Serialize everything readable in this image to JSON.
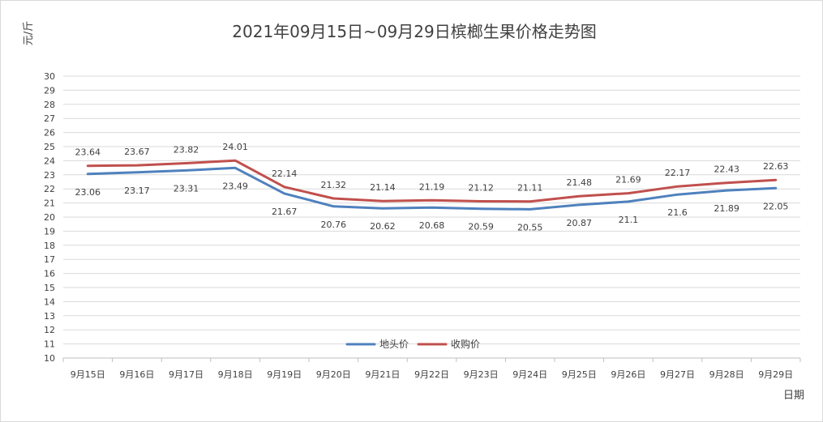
{
  "chart_data": {
    "type": "line",
    "title": "2021年09月15日~09月29日槟榔生果价格走势图",
    "ylabel": "元/斤",
    "xlabel": "日期",
    "ylim": [
      10,
      30
    ],
    "yticks": [
      10,
      11,
      12,
      13,
      14,
      15,
      16,
      17,
      18,
      19,
      20,
      21,
      22,
      23,
      24,
      25,
      26,
      27,
      28,
      29,
      30
    ],
    "grid": true,
    "legend_position": "bottom-center",
    "categories": [
      "9月15日",
      "9月16日",
      "9月17日",
      "9月18日",
      "9月19日",
      "9月20日",
      "9月21日",
      "9月22日",
      "9月23日",
      "9月24日",
      "9月25日",
      "9月26日",
      "9月27日",
      "9月28日",
      "9月29日"
    ],
    "series": [
      {
        "name": "地头价",
        "color": "#4f81bd",
        "values": [
          23.06,
          23.17,
          23.31,
          23.49,
          21.67,
          20.76,
          20.62,
          20.68,
          20.59,
          20.55,
          20.87,
          21.1,
          21.6,
          21.89,
          22.05
        ],
        "labels": [
          "23.06",
          "23.17",
          "23.31",
          "23.49",
          "21.67",
          "20.76",
          "20.62",
          "20.68",
          "20.59",
          "20.55",
          "20.87",
          "21.1",
          "21.6",
          "21.89",
          "22.05"
        ]
      },
      {
        "name": "收购价",
        "color": "#c0504d",
        "values": [
          23.64,
          23.67,
          23.82,
          24.01,
          22.14,
          21.32,
          21.14,
          21.19,
          21.12,
          21.11,
          21.48,
          21.69,
          22.17,
          22.43,
          22.63
        ],
        "labels": [
          "23.64",
          "23.67",
          "23.82",
          "24.01",
          "22.14",
          "21.32",
          "21.14",
          "21.19",
          "21.12",
          "21.11",
          "21.48",
          "21.69",
          "22.17",
          "22.43",
          "22.63"
        ]
      }
    ]
  }
}
